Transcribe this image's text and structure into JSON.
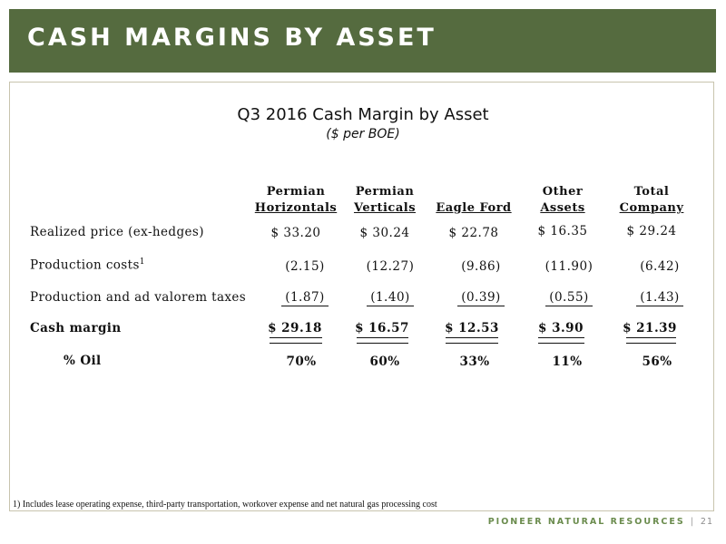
{
  "header": {
    "title": "CASH MARGINS BY ASSET"
  },
  "table": {
    "title": "Q3 2016 Cash Margin by Asset",
    "subtitle": "($ per BOE)",
    "columns": [
      {
        "line1": "Permian",
        "line2": "Horizontals"
      },
      {
        "line1": "Permian",
        "line2": "Verticals"
      },
      {
        "line1": "",
        "line2": "Eagle Ford"
      },
      {
        "line1": "Other",
        "line2": "Assets"
      },
      {
        "line1": "Total",
        "line2": "Company"
      }
    ],
    "rows": [
      {
        "label": "Realized price (ex-hedges)",
        "values": [
          "$ 33.20",
          "$ 30.24",
          "$ 22.78",
          "$ 16.35",
          "$ 29.24"
        ]
      },
      {
        "label": "Production costs",
        "footnote_mark": "1",
        "values": [
          "(2.15)",
          "(12.27)",
          "(9.86)",
          "(11.90)",
          "(6.42)"
        ]
      },
      {
        "label": "Production and ad valorem taxes",
        "values": [
          "(1.87)",
          "(1.40)",
          "(0.39)",
          "(0.55)",
          "(1.43)"
        ]
      },
      {
        "label": "Cash margin",
        "values": [
          "$ 29.18",
          "$ 16.57",
          "$ 12.53",
          "$ 3.90",
          "$ 21.39"
        ]
      },
      {
        "label": "% Oil",
        "values": [
          "70%",
          "60%",
          "33%",
          "11%",
          "56%"
        ]
      }
    ]
  },
  "footnote": "1) Includes lease operating expense, third-party transportation, workover expense and net natural gas processing cost",
  "footer": {
    "brand": "PIONEER NATURAL RESOURCES",
    "page": "21"
  },
  "colors": {
    "header_green": "#556b3f",
    "brand_green": "#6b8c4e"
  }
}
